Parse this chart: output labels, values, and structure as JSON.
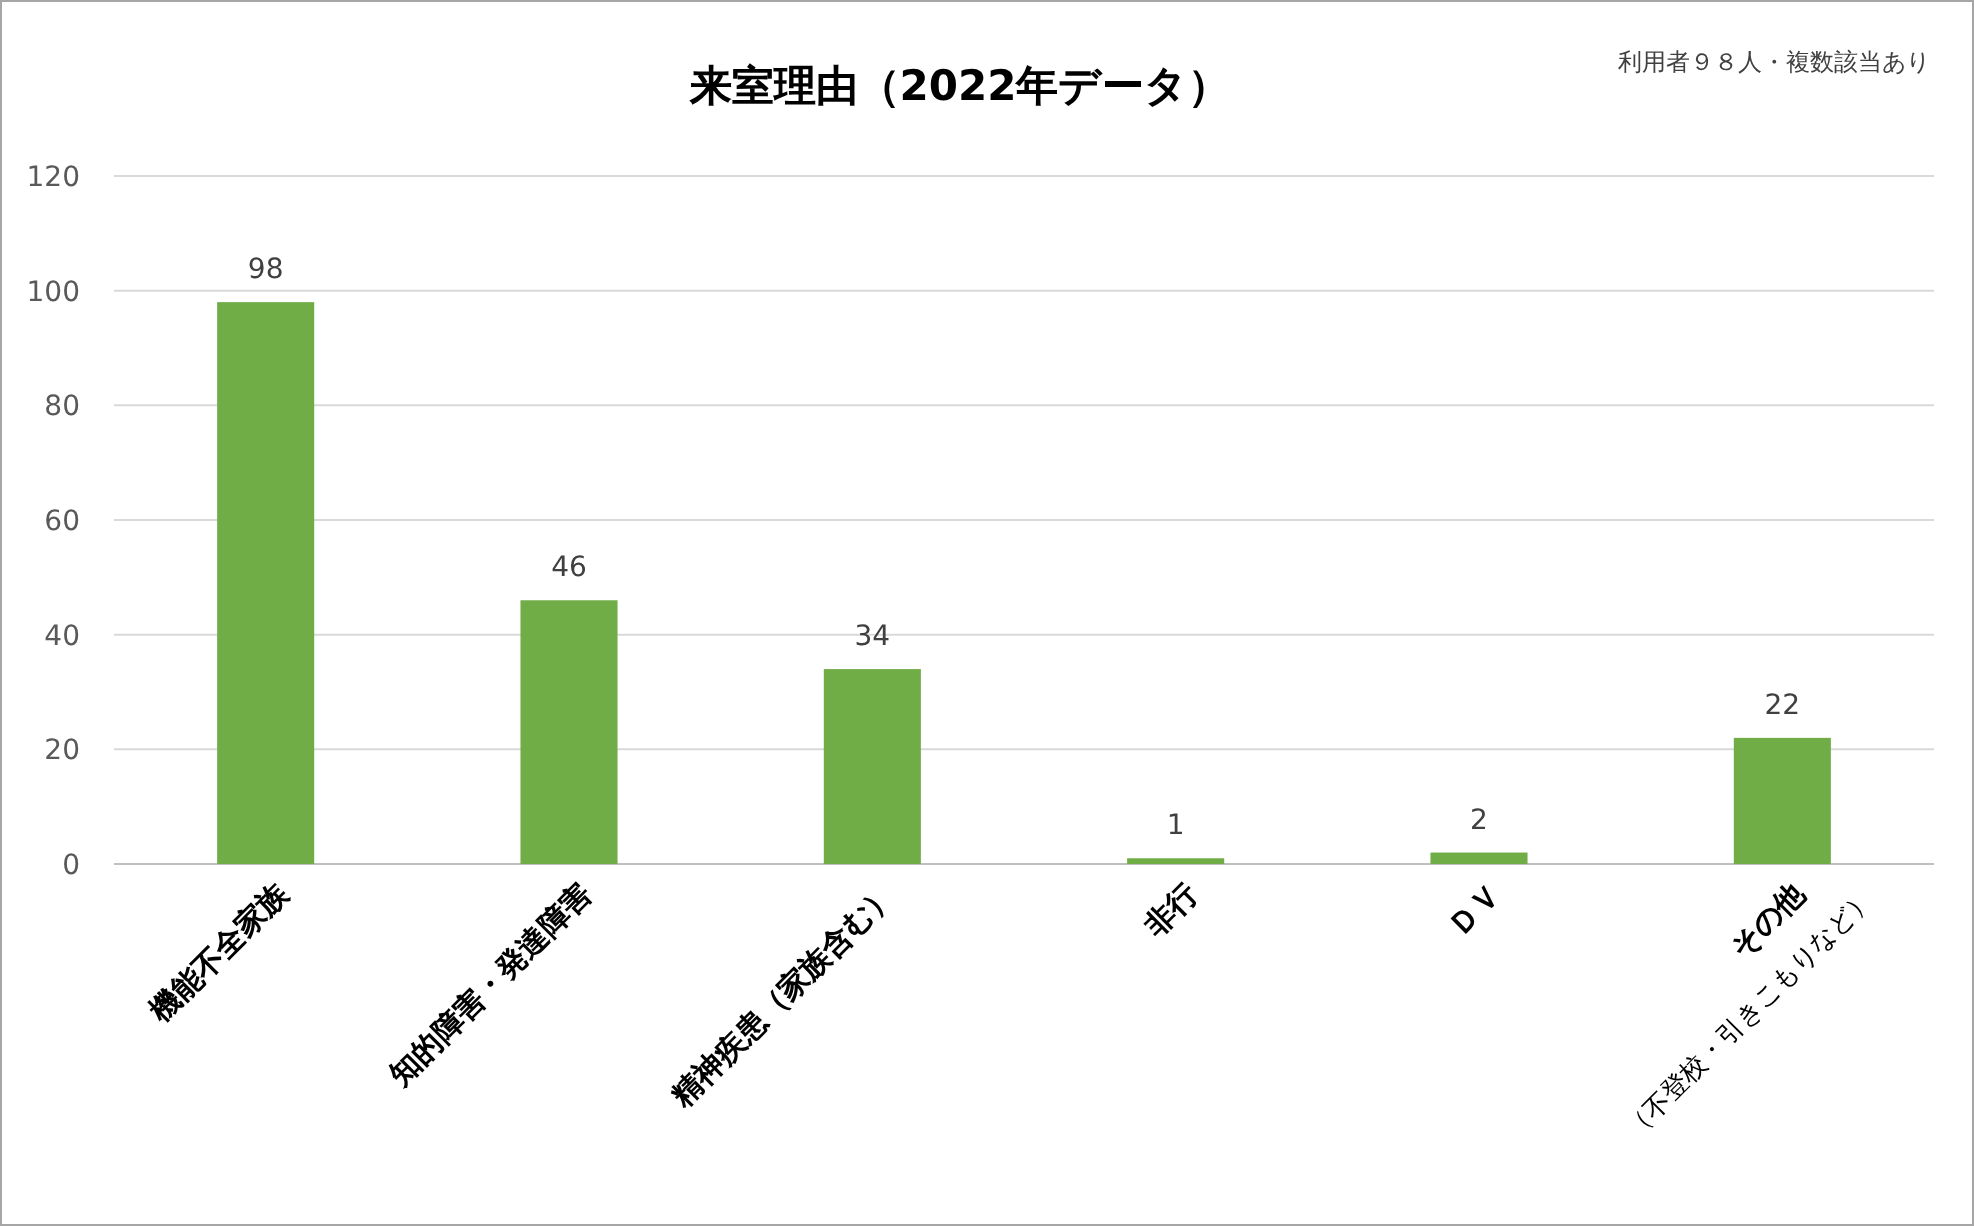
{
  "chart_data": {
    "type": "bar",
    "title": "来室理由（2022年データ）",
    "annotations": [
      "利用者９８人・複数該当あり"
    ],
    "categories": [
      "機能不全家族",
      "知的障害・発達障害",
      "精神疾患（家族含む）",
      "非行",
      "ＤＶ",
      "その他\n（不登校・引きこもりなど）"
    ],
    "values": [
      98,
      46,
      34,
      1,
      2,
      22
    ],
    "color": "#70ad47",
    "data_labels": true,
    "ylim": [
      0,
      120
    ],
    "yticks": [
      0,
      20,
      40,
      60,
      80,
      100,
      120
    ],
    "grid": "y"
  }
}
